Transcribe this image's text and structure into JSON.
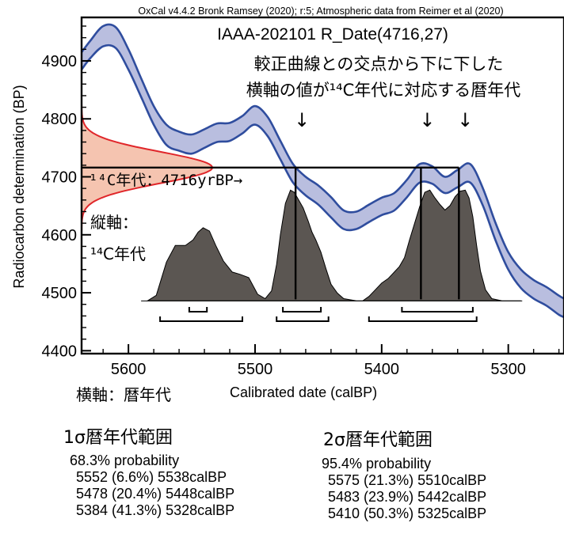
{
  "chart_data": {
    "type": "area",
    "header": "OxCal v4.4.2 Bronk Ramsey (2020); r:5; Atmospheric data from Reimer et al (2020)",
    "title": "IAAA-202101 R_Date(4716,27)",
    "xlabel": "Calibrated date (calBP)",
    "ylabel": "Radiocarbon determination (BP)",
    "x_reversed": true,
    "xlim": [
      5637,
      5256
    ],
    "ylim": [
      4395,
      4975
    ],
    "x_ticks": [
      5600,
      5500,
      5400,
      5300
    ],
    "y_ticks": [
      4400,
      4500,
      4600,
      4700,
      4800,
      4900
    ],
    "grid": false,
    "calibration_curve": {
      "x": [
        5637,
        5630,
        5620,
        5610,
        5600,
        5590,
        5580,
        5570,
        5560,
        5550,
        5540,
        5530,
        5520,
        5510,
        5500,
        5490,
        5480,
        5470,
        5460,
        5450,
        5440,
        5430,
        5420,
        5410,
        5400,
        5390,
        5380,
        5370,
        5360,
        5350,
        5340,
        5330,
        5320,
        5310,
        5300,
        5290,
        5280,
        5270,
        5260,
        5256
      ],
      "upper": [
        4915,
        4935,
        4960,
        4958,
        4920,
        4870,
        4822,
        4790,
        4778,
        4773,
        4782,
        4792,
        4793,
        4805,
        4822,
        4803,
        4762,
        4722,
        4700,
        4685,
        4665,
        4642,
        4640,
        4652,
        4664,
        4672,
        4695,
        4722,
        4718,
        4700,
        4712,
        4722,
        4680,
        4620,
        4570,
        4540,
        4522,
        4510,
        4495,
        4490
      ],
      "lower": [
        4885,
        4905,
        4925,
        4922,
        4885,
        4838,
        4790,
        4755,
        4745,
        4740,
        4750,
        4760,
        4762,
        4775,
        4790,
        4770,
        4730,
        4690,
        4668,
        4652,
        4630,
        4610,
        4610,
        4622,
        4634,
        4642,
        4665,
        4690,
        4688,
        4672,
        4682,
        4690,
        4650,
        4590,
        4540,
        4508,
        4490,
        4478,
        4462,
        4458
      ]
    },
    "radiocarbon_date": {
      "mean": 4716,
      "sigma": 27
    },
    "posterior": {
      "x": [
        5585,
        5578,
        5570,
        5563,
        5555,
        5549,
        5545,
        5541,
        5536,
        5531,
        5525,
        5518,
        5512,
        5505,
        5498,
        5492,
        5487,
        5483,
        5480,
        5476,
        5472,
        5469,
        5466,
        5462,
        5458,
        5455,
        5452,
        5448,
        5444,
        5440,
        5435,
        5430,
        5425,
        5420,
        5415,
        5410,
        5405,
        5400,
        5395,
        5390,
        5386,
        5382,
        5378,
        5374,
        5370,
        5366,
        5362,
        5358,
        5354,
        5350,
        5346,
        5342,
        5338,
        5334,
        5331,
        5328,
        5325,
        5322,
        5318,
        5313,
        5305,
        5290
      ],
      "p": [
        0.0,
        0.05,
        0.35,
        0.5,
        0.5,
        0.55,
        0.62,
        0.66,
        0.63,
        0.5,
        0.36,
        0.26,
        0.24,
        0.21,
        0.06,
        0.02,
        0.09,
        0.33,
        0.6,
        0.88,
        1.0,
        0.98,
        0.92,
        0.84,
        0.72,
        0.62,
        0.55,
        0.44,
        0.29,
        0.15,
        0.07,
        0.02,
        0.01,
        0.0,
        0.0,
        0.04,
        0.1,
        0.16,
        0.2,
        0.26,
        0.31,
        0.39,
        0.55,
        0.7,
        0.85,
        0.98,
        1.0,
        0.93,
        0.87,
        0.82,
        0.86,
        0.94,
        0.99,
        1.0,
        0.93,
        0.76,
        0.5,
        0.27,
        0.1,
        0.02,
        0.0,
        0.0
      ]
    },
    "intersections": [
      5468,
      5369,
      5339
    ],
    "range_bars_1sigma": [
      [
        5552,
        5538
      ],
      [
        5478,
        5448
      ],
      [
        5384,
        5328
      ]
    ],
    "range_bars_2sigma": [
      [
        5575,
        5510
      ],
      [
        5483,
        5442
      ],
      [
        5410,
        5325
      ]
    ],
    "annotations": {
      "explain_line1": "較正曲線との交点から下に下した",
      "explain_line2": "横軸の値が¹⁴C年代に対応する暦年代",
      "arrow": "↓",
      "c14_label": "¹⁴C年代：4716yrBP→",
      "vertical_axis_line1": "縦軸：",
      "vertical_axis_line2": "¹⁴C年代"
    },
    "colors": {
      "curve_line": "#2f4d9e",
      "curve_fill": "#b9bedf",
      "date_line": "#e0262a",
      "date_fill": "#f5c4b0",
      "posterior_fill": "#5b5652"
    }
  },
  "page": {
    "horizontal_axis_label": "横軸：暦年代",
    "sigma1": {
      "title": "1σ暦年代範囲",
      "probability": "68.3% probability",
      "ranges": [
        "5552 (6.6%) 5538calBP",
        "5478 (20.4%) 5448calBP",
        "5384 (41.3%) 5328calBP"
      ]
    },
    "sigma2": {
      "title": "2σ暦年代範囲",
      "probability": "95.4% probability",
      "ranges": [
        "5575 (21.3%) 5510calBP",
        "5483 (23.9%) 5442calBP",
        "5410 (50.3%) 5325calBP"
      ]
    }
  }
}
